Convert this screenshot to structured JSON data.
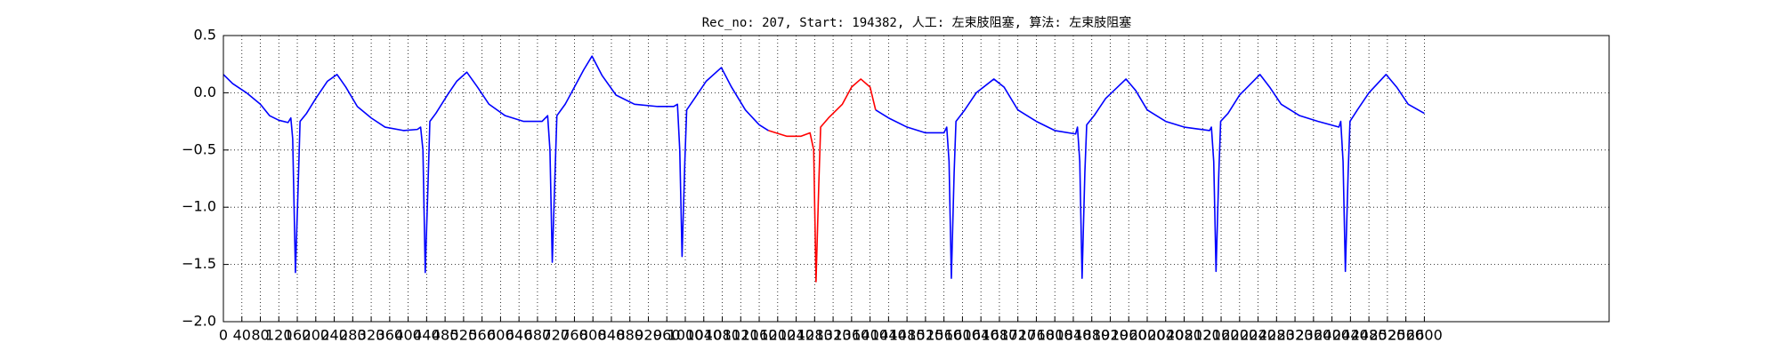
{
  "chart_data": {
    "type": "line",
    "title": "Rec_no: 207, Start: 194382, 人工: 左束肢阻塞, 算法: 左束肢阻塞",
    "x": [
      0,
      20,
      50,
      80,
      100,
      120,
      140,
      146,
      150,
      156,
      162,
      166,
      180,
      200,
      225,
      246,
      265,
      290,
      320,
      350,
      390,
      420,
      427,
      432,
      437,
      443,
      447,
      460,
      485,
      505,
      527,
      550,
      575,
      610,
      650,
      690,
      702,
      707,
      712,
      718,
      722,
      740,
      760,
      780,
      798,
      820,
      850,
      890,
      940,
      975,
      983,
      988,
      993,
      999,
      1003,
      1020,
      1045,
      1078,
      1100,
      1130,
      1160,
      1180,
      1220,
      1250,
      1270,
      1278,
      1283,
      1289,
      1293,
      1310,
      1340,
      1360,
      1380,
      1400,
      1412,
      1440,
      1480,
      1520,
      1560,
      1566,
      1571,
      1576,
      1582,
      1586,
      1605,
      1630,
      1668,
      1690,
      1720,
      1760,
      1800,
      1845,
      1849,
      1854,
      1859,
      1865,
      1869,
      1885,
      1910,
      1954,
      1975,
      2000,
      2040,
      2080,
      2135,
      2139,
      2144,
      2149,
      2155,
      2159,
      2175,
      2200,
      2244,
      2265,
      2290,
      2330,
      2370,
      2415,
      2419,
      2424,
      2429,
      2435,
      2439,
      2455,
      2480,
      2517,
      2540,
      2565,
      2600
    ],
    "series": [
      {
        "color": "#0000ff",
        "values": [
          0.16,
          0.08,
          0.0,
          -0.1,
          -0.2,
          -0.24,
          -0.26,
          -0.22,
          -0.4,
          -1.57,
          -0.8,
          -0.25,
          -0.18,
          -0.05,
          0.1,
          0.16,
          0.05,
          -0.12,
          -0.22,
          -0.3,
          -0.33,
          -0.32,
          -0.3,
          -0.5,
          -1.57,
          -0.8,
          -0.25,
          -0.18,
          -0.02,
          0.1,
          0.18,
          0.05,
          -0.1,
          -0.2,
          -0.25,
          -0.25,
          -0.2,
          -0.5,
          -1.48,
          -0.7,
          -0.2,
          -0.1,
          0.05,
          0.2,
          0.32,
          0.15,
          -0.02,
          -0.1,
          -0.12,
          -0.12,
          -0.1,
          -0.5,
          -1.43,
          -0.6,
          -0.15,
          -0.05,
          0.1,
          0.22,
          0.05,
          -0.15,
          -0.28,
          -0.33,
          null,
          null,
          null,
          null,
          null,
          null,
          null,
          null,
          null,
          null,
          null,
          null,
          -0.15,
          -0.22,
          -0.3,
          -0.35,
          -0.35,
          -0.3,
          -0.6,
          -1.62,
          -0.7,
          -0.25,
          -0.15,
          0.0,
          0.12,
          0.05,
          -0.15,
          -0.25,
          -0.33,
          -0.36,
          -0.3,
          -0.6,
          -1.62,
          -0.7,
          -0.28,
          -0.2,
          -0.05,
          0.12,
          0.02,
          -0.15,
          -0.25,
          -0.3,
          -0.33,
          -0.3,
          -0.6,
          -1.56,
          -0.7,
          -0.25,
          -0.18,
          -0.02,
          0.16,
          0.05,
          -0.1,
          -0.2,
          -0.25,
          -0.3,
          -0.25,
          -0.6,
          -1.56,
          -0.7,
          -0.25,
          -0.15,
          0.0,
          0.16,
          0.05,
          -0.1,
          -0.18
        ]
      },
      {
        "color": "#ff0000",
        "x": [
          1180,
          1220,
          1250,
          1270,
          1278,
          1283,
          1289,
          1293,
          1310,
          1340,
          1360,
          1380,
          1400,
          1412
        ],
        "values": [
          -0.33,
          -0.38,
          -0.38,
          -0.35,
          -0.5,
          -1.65,
          -0.8,
          -0.3,
          -0.22,
          -0.1,
          0.05,
          0.12,
          0.05,
          -0.15
        ]
      }
    ],
    "xlim": [
      0,
      3000
    ],
    "xticks": [
      0,
      40,
      80,
      120,
      160,
      200,
      240,
      280,
      320,
      360,
      400,
      440,
      480,
      520,
      560,
      600,
      640,
      680,
      720,
      760,
      800,
      840,
      880,
      920,
      960,
      1000,
      1040,
      1080,
      1120,
      1160,
      1200,
      1240,
      1280,
      1320,
      1360,
      1400,
      1440,
      1480,
      1520,
      1560,
      1600,
      1640,
      1680,
      1720,
      1760,
      1800,
      1840,
      1880,
      1920,
      1960,
      2000,
      2040,
      2080,
      2120,
      2160,
      2200,
      2240,
      2280,
      2320,
      2360,
      2400,
      2440,
      2480,
      2520,
      2560,
      2600
    ],
    "ylim": [
      -2,
      0.5
    ],
    "yticks": [
      {
        "value": -2,
        "label": "−2.0"
      },
      {
        "value": -1.5,
        "label": "−1.5"
      },
      {
        "value": -1,
        "label": "−1.0"
      },
      {
        "value": -0.5,
        "label": "−0.5"
      },
      {
        "value": 0,
        "label": "0.0"
      },
      {
        "value": 0.5,
        "label": "0.5"
      }
    ],
    "grid": true
  }
}
